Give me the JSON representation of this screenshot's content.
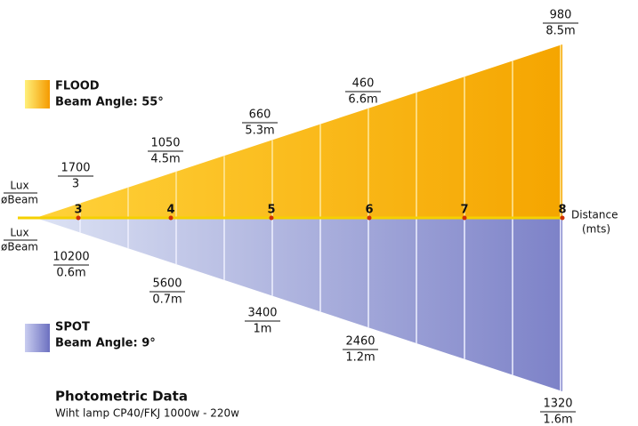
{
  "flood": {
    "name": "FLOOD",
    "beam_angle": "Beam Angle: 55°",
    "readings": [
      {
        "lux": "1700",
        "beam": "3"
      },
      {
        "lux": "1050",
        "beam": "4.5m"
      },
      {
        "lux": "660",
        "beam": "5.3m"
      },
      {
        "lux": "460",
        "beam": "6.6m"
      },
      {
        "lux": "980",
        "beam": "8.5m"
      }
    ]
  },
  "spot": {
    "name": "SPOT",
    "beam_angle": "Beam Angle: 9°",
    "readings": [
      {
        "lux": "10200",
        "beam": "0.6m"
      },
      {
        "lux": "5600",
        "beam": "0.7m"
      },
      {
        "lux": "3400",
        "beam": "1m"
      },
      {
        "lux": "2460",
        "beam": "1.2m"
      },
      {
        "lux": "1320",
        "beam": "1.6m"
      }
    ]
  },
  "legend": {
    "lux": "Lux",
    "beam": "øBeam"
  },
  "axis": {
    "ticks": [
      "3",
      "4",
      "5",
      "6",
      "7",
      "8"
    ],
    "label": "Distance",
    "unit": "(mts)"
  },
  "footer": {
    "title": "Photometric Data",
    "subtitle": "Wiht lamp CP40/FKJ 1000w - 220w"
  }
}
